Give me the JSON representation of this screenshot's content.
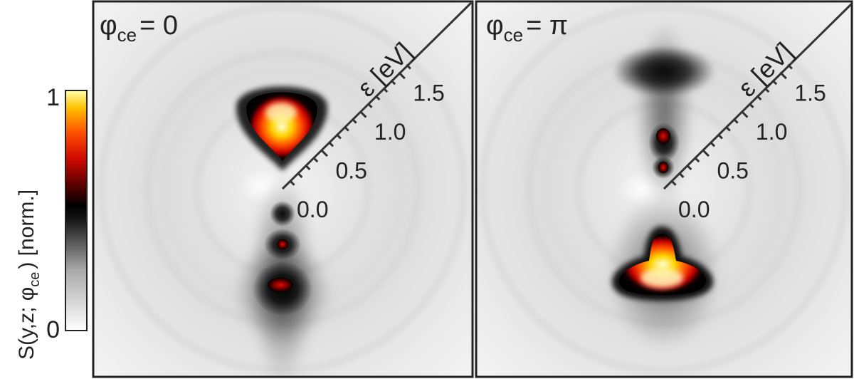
{
  "chart_data": [
    {
      "type": "heatmap",
      "title_symbol": "φ",
      "title_subscript": "ce",
      "title_value": "= 0",
      "radial_axis": {
        "label": "ε [eV]",
        "ticks": [
          0.0,
          0.5,
          1.0,
          1.5
        ],
        "tick_labels": [
          "0.0",
          "0.5",
          "1.0",
          "1.5"
        ]
      },
      "features": [
        {
          "name": "upper-lobe",
          "energy_eV": 0.95,
          "intensity": 1.0
        },
        {
          "name": "lower-spot-1",
          "energy_eV": 0.3,
          "intensity": 0.3
        },
        {
          "name": "lower-spot-2",
          "energy_eV": 0.6,
          "intensity": 0.38
        },
        {
          "name": "lower-spot-3",
          "energy_eV": 0.95,
          "intensity": 0.52
        }
      ]
    },
    {
      "type": "heatmap",
      "title_symbol": "φ",
      "title_subscript": "ce",
      "title_value": "= π",
      "radial_axis": {
        "label": "ε [eV]",
        "ticks": [
          0.0,
          0.5,
          1.0,
          1.5
        ],
        "tick_labels": [
          "0.0",
          "0.5",
          "1.0",
          "1.5"
        ]
      },
      "features": [
        {
          "name": "upper-spot-1",
          "energy_eV": 0.25,
          "intensity": 0.52
        },
        {
          "name": "upper-spot-2",
          "energy_eV": 0.5,
          "intensity": 0.62
        },
        {
          "name": "upper-dark-band",
          "energy_eV": 1.15,
          "intensity": 0.45
        },
        {
          "name": "lower-lobe",
          "energy_eV": 0.95,
          "intensity": 1.0
        }
      ]
    }
  ],
  "colorbar": {
    "label_main": "S(y,z; φ",
    "label_sub": "ce",
    "label_tail": ") [norm.]",
    "min_label": "0",
    "max_label": "1",
    "range": [
      0,
      1
    ]
  }
}
